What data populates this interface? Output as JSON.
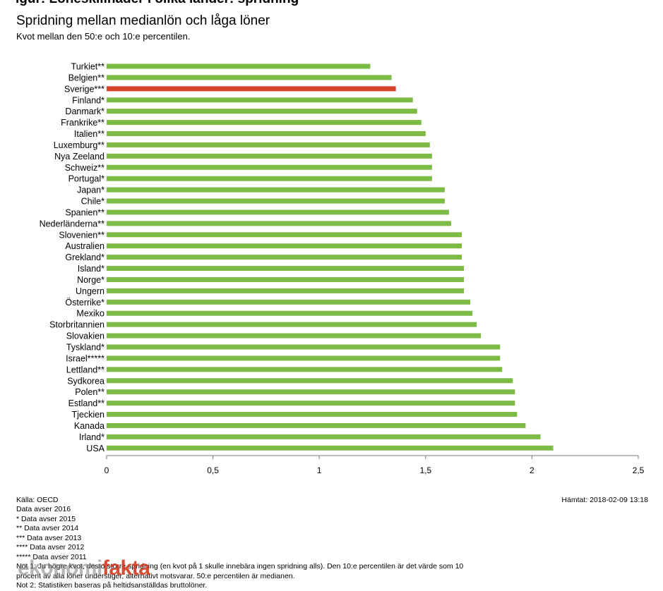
{
  "header": {
    "fragment": "igur: Löneskillnader i olika länder: spridning",
    "title": "Spridning mellan medianlön och låga löner",
    "subtitle": "Kvot mellan den 50:e och 10:e percentilen."
  },
  "chart_data": {
    "type": "bar",
    "orientation": "horizontal",
    "title": "Spridning mellan medianlön och låga löner",
    "subtitle": "Kvot mellan den 50:e och 10:e percentilen.",
    "xlabel": "",
    "ylabel": "",
    "xlim": [
      0,
      2.5
    ],
    "xticks": [
      {
        "value": 0,
        "label": "0"
      },
      {
        "value": 0.5,
        "label": "0,5"
      },
      {
        "value": 1,
        "label": "1"
      },
      {
        "value": 1.5,
        "label": "1,5"
      },
      {
        "value": 2,
        "label": "2"
      },
      {
        "value": 2.5,
        "label": "2,5"
      }
    ],
    "grid": false,
    "legend": "none",
    "colors": {
      "default": "#7cbc45",
      "highlight": "#d9432a"
    },
    "highlight_category": "Sverige***",
    "categories": [
      "Turkiet**",
      "Belgien**",
      "Sverige***",
      "Finland*",
      "Danmark*",
      "Frankrike**",
      "Italien**",
      "Luxemburg**",
      "Nya Zeeland",
      "Schweiz**",
      "Portugal*",
      "Japan*",
      "Chile*",
      "Spanien**",
      "Nederländerna**",
      "Slovenien**",
      "Australien",
      "Grekland*",
      "Island*",
      "Norge*",
      "Ungern",
      "Österrike*",
      "Mexiko",
      "Storbritannien",
      "Slovakien",
      "Tyskland*",
      "Israel*****",
      "Lettland**",
      "Sydkorea",
      "Polen**",
      "Estland**",
      "Tjeckien",
      "Kanada",
      "Irland*",
      "USA"
    ],
    "values": [
      1.24,
      1.34,
      1.36,
      1.44,
      1.46,
      1.48,
      1.5,
      1.52,
      1.53,
      1.53,
      1.53,
      1.59,
      1.59,
      1.61,
      1.62,
      1.67,
      1.67,
      1.67,
      1.68,
      1.68,
      1.68,
      1.71,
      1.72,
      1.74,
      1.76,
      1.85,
      1.85,
      1.86,
      1.91,
      1.92,
      1.92,
      1.93,
      1.97,
      2.04,
      2.1
    ]
  },
  "footer": {
    "source": "Källa: OECD",
    "retrieved": "Hämtat: 2018-02-09 13:18",
    "notes": [
      "Data avser 2016",
      "* Data avser 2015",
      "** Data avser 2014",
      "*** Data avser 2013",
      "**** Data avser 2012",
      "***** Data avser 2011",
      "Not 1: Ju högre kvot, desto större spridning (en kvot på 1 skulle innebära ingen spridning alls). Den 10:e percentilen är det värde som 10",
      "procent av alla löner understiger, alternativt motsvarar. 50:e percentilen är medianen.",
      "Not 2: Statistiken baseras på heltidsanställdas bruttolöner."
    ]
  },
  "logo": {
    "part1": "ekonomi",
    "part2": "fakta"
  }
}
